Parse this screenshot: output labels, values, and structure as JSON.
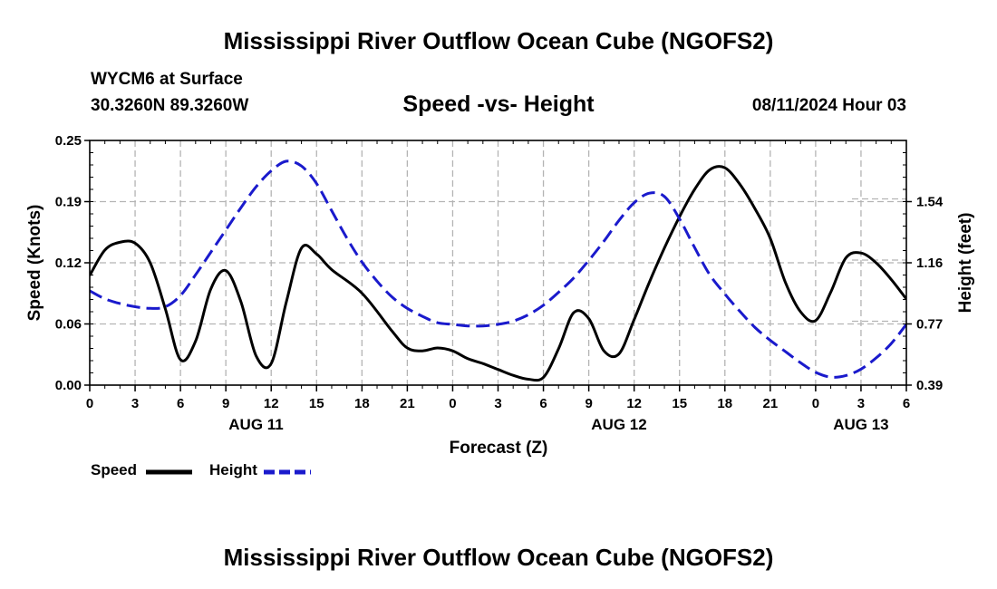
{
  "title": "Mississippi River Outflow Ocean Cube (NGOFS2)",
  "footer_title": "Mississippi River Outflow Ocean Cube (NGOFS2)",
  "station": "WYCM6 at Surface",
  "coordinates": "30.3260N  89.3260W",
  "subtitle": "Speed -vs- Height",
  "timestamp": "08/11/2024 Hour 03",
  "colors": {
    "speed": "#000000",
    "height": "#1a1acc",
    "grid": "#b4b4b4"
  },
  "chart_data": {
    "type": "line",
    "xlabel": "Forecast (Z)",
    "ylabel": "Speed (Knots)",
    "ylabel_right": "Height (feet)",
    "x_range_hours": [
      0,
      54
    ],
    "x_ticks": [
      "0",
      "3",
      "6",
      "9",
      "12",
      "15",
      "18",
      "21",
      "0",
      "3",
      "6",
      "9",
      "12",
      "15",
      "18",
      "21",
      "0",
      "3",
      "6"
    ],
    "date_labels": [
      {
        "label": "AUG 11",
        "hour": 11
      },
      {
        "label": "AUG 12",
        "hour": 35
      },
      {
        "label": "AUG 13",
        "hour": 51
      }
    ],
    "ylim_left": [
      0,
      0.25
    ],
    "yticks_left": [
      "0.00",
      "0.06",
      "0.12",
      "0.19",
      "0.25"
    ],
    "ylim_right": [
      0.39,
      1.92
    ],
    "yticks_right": [
      "0.39",
      "0.77",
      "1.16",
      "1.54"
    ],
    "series": [
      {
        "name": "Speed",
        "axis": "left",
        "style": "solid",
        "x": [
          0,
          1,
          2,
          3,
          4,
          5,
          6,
          7,
          8,
          9,
          10,
          11,
          12,
          13,
          14,
          15,
          16,
          18,
          20,
          21,
          22,
          23,
          24,
          25,
          26,
          27,
          28,
          29,
          30,
          31,
          32,
          33,
          34,
          35,
          36,
          37,
          38,
          39,
          40,
          41,
          42,
          43,
          44,
          45,
          46,
          47,
          48,
          49,
          50,
          51,
          52,
          53,
          54
        ],
        "values": [
          0.112,
          0.138,
          0.146,
          0.145,
          0.125,
          0.078,
          0.026,
          0.045,
          0.098,
          0.117,
          0.085,
          0.03,
          0.022,
          0.085,
          0.14,
          0.134,
          0.118,
          0.094,
          0.055,
          0.038,
          0.035,
          0.038,
          0.035,
          0.027,
          0.022,
          0.016,
          0.01,
          0.006,
          0.008,
          0.037,
          0.074,
          0.068,
          0.035,
          0.032,
          0.067,
          0.105,
          0.14,
          0.172,
          0.2,
          0.22,
          0.222,
          0.205,
          0.18,
          0.15,
          0.105,
          0.075,
          0.066,
          0.095,
          0.13,
          0.135,
          0.125,
          0.108,
          0.088
        ]
      },
      {
        "name": "Height",
        "axis": "right",
        "style": "dashed",
        "x": [
          0,
          1,
          2,
          3,
          4,
          5,
          6,
          7,
          8,
          9,
          10,
          11,
          12,
          13,
          14,
          15,
          16,
          17,
          18,
          19,
          20,
          21,
          22,
          23,
          24,
          25,
          26,
          27,
          28,
          29,
          30,
          31,
          32,
          33,
          34,
          35,
          36,
          37,
          38,
          39,
          40,
          41,
          42,
          43,
          44,
          45,
          46,
          47,
          48,
          49,
          50,
          51,
          52,
          53,
          54
        ],
        "values": [
          0.98,
          0.93,
          0.9,
          0.88,
          0.87,
          0.88,
          0.95,
          1.08,
          1.22,
          1.36,
          1.5,
          1.63,
          1.73,
          1.79,
          1.76,
          1.65,
          1.48,
          1.31,
          1.16,
          1.04,
          0.94,
          0.87,
          0.82,
          0.78,
          0.77,
          0.76,
          0.76,
          0.77,
          0.79,
          0.83,
          0.89,
          0.97,
          1.06,
          1.17,
          1.29,
          1.42,
          1.53,
          1.59,
          1.57,
          1.43,
          1.25,
          1.08,
          0.96,
          0.85,
          0.75,
          0.67,
          0.6,
          0.53,
          0.47,
          0.44,
          0.45,
          0.49,
          0.56,
          0.65,
          0.77
        ]
      }
    ]
  },
  "legend": {
    "speed_label": "Speed",
    "height_label": "Height"
  }
}
